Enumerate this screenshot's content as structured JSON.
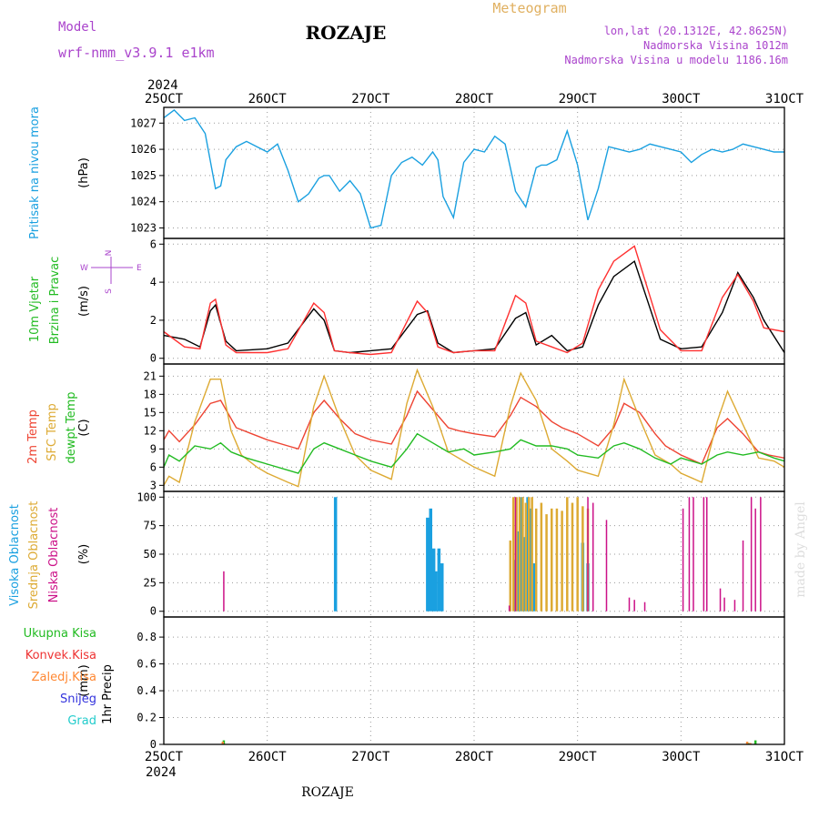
{
  "header": {
    "model_label": "Model",
    "model_name": "wrf-nmm_v3.9.1  e1km",
    "station": "ROZAJE",
    "meteogram_label": "Meteogram",
    "lonlat": "lon,lat (20.1312E, 42.8625N)",
    "altitude": "Nadmorska Visina 1012m",
    "model_altitude": "Nadmorska Visina u modelu 1186.16m",
    "watermark": "made by Angel",
    "footer_station": "ROZAJE"
  },
  "colors": {
    "pressure": "#1aa0e0",
    "wind_speed": "#000000",
    "gust": "#ff3030",
    "temp2m": "#ee4433",
    "sfc_temp": "#ddaa33",
    "dewpoint": "#22bb22",
    "high_cloud": "#1aa0e0",
    "mid_cloud": "#ddaa33",
    "low_cloud": "#cc1188",
    "total_precip": "#22bb22",
    "conv_precip": "#ee3333",
    "frz_precip": "#ff8833",
    "snow": "#3333dd",
    "hail": "#22cccc",
    "model_text": "#aa44cc",
    "title_gold": "#e0b060"
  },
  "chart_data": [
    {
      "type": "line",
      "id": "pressure",
      "ylabel_lines": [
        "Pritisak na nivou mora"
      ],
      "unit": "(hPa)",
      "x_ticks": [
        "25OCT",
        "26OCT",
        "27OCT",
        "28OCT",
        "29OCT",
        "30OCT",
        "31OCT"
      ],
      "x_year_label": "2024",
      "x_range": [
        0,
        6
      ],
      "ylim": [
        1022.6,
        1027.6
      ],
      "y_ticks": [
        1023,
        1024,
        1025,
        1026,
        1027
      ],
      "series": [
        {
          "key": "pressure",
          "x": [
            0,
            0.1,
            0.2,
            0.3,
            0.4,
            0.5,
            0.55,
            0.6,
            0.7,
            0.8,
            0.9,
            1.0,
            1.1,
            1.2,
            1.3,
            1.4,
            1.5,
            1.55,
            1.6,
            1.7,
            1.8,
            1.9,
            2.0,
            2.1,
            2.2,
            2.3,
            2.4,
            2.5,
            2.6,
            2.65,
            2.7,
            2.8,
            2.9,
            3.0,
            3.1,
            3.2,
            3.3,
            3.4,
            3.5,
            3.6,
            3.65,
            3.7,
            3.8,
            3.9,
            4.0,
            4.1,
            4.2,
            4.3,
            4.4,
            4.5,
            4.6,
            4.7,
            4.8,
            4.9,
            5.0,
            5.1,
            5.2,
            5.3,
            5.4,
            5.5,
            5.6,
            5.7,
            5.8,
            5.9,
            6.0
          ],
          "y": [
            1027.2,
            1027.5,
            1027.1,
            1027.2,
            1026.6,
            1024.5,
            1024.6,
            1025.6,
            1026.1,
            1026.3,
            1026.1,
            1025.9,
            1026.2,
            1025.2,
            1024.0,
            1024.3,
            1024.9,
            1025.0,
            1025.0,
            1024.4,
            1024.8,
            1024.3,
            1023.0,
            1023.1,
            1025.0,
            1025.5,
            1025.7,
            1025.4,
            1025.9,
            1025.6,
            1024.2,
            1023.4,
            1025.5,
            1026.0,
            1025.9,
            1026.5,
            1026.2,
            1024.4,
            1023.8,
            1025.3,
            1025.4,
            1025.4,
            1025.6,
            1026.7,
            1025.4,
            1023.3,
            1024.5,
            1026.1,
            1026.0,
            1025.9,
            1026.0,
            1026.2,
            1026.1,
            1026.0,
            1025.9,
            1025.5,
            1025.8,
            1026.0,
            1025.9,
            1026.0,
            1026.2,
            1026.1,
            1026.0,
            1025.9,
            1025.9
          ]
        }
      ]
    },
    {
      "type": "line",
      "id": "wind",
      "ylabel_lines": [
        "10m Vjetar",
        "Brzina i Pravac"
      ],
      "unit": "(m/s)",
      "compass": {
        "n": "N",
        "s": "S",
        "e": "E",
        "w": "W"
      },
      "x_range": [
        0,
        6
      ],
      "ylim": [
        -0.3,
        6.3
      ],
      "y_ticks": [
        0,
        2,
        4,
        6
      ],
      "series": [
        {
          "key": "wind_speed",
          "x": [
            0,
            0.2,
            0.35,
            0.45,
            0.5,
            0.6,
            0.7,
            1.0,
            1.2,
            1.45,
            1.55,
            1.65,
            1.8,
            2.0,
            2.2,
            2.45,
            2.55,
            2.65,
            2.8,
            3.0,
            3.2,
            3.4,
            3.5,
            3.6,
            3.75,
            3.9,
            4.05,
            4.2,
            4.35,
            4.55,
            4.8,
            5.0,
            5.2,
            5.4,
            5.55,
            5.7,
            5.8,
            6.0
          ],
          "y": [
            1.2,
            1.0,
            0.6,
            2.5,
            2.8,
            0.9,
            0.4,
            0.5,
            0.8,
            2.6,
            2.0,
            0.4,
            0.3,
            0.4,
            0.5,
            2.3,
            2.5,
            0.8,
            0.3,
            0.4,
            0.5,
            2.1,
            2.4,
            0.7,
            1.2,
            0.4,
            0.6,
            2.8,
            4.3,
            5.1,
            1.0,
            0.5,
            0.6,
            2.4,
            4.5,
            3.2,
            2.0,
            0.3
          ]
        },
        {
          "key": "gust",
          "x": [
            0,
            0.2,
            0.35,
            0.45,
            0.5,
            0.6,
            0.7,
            1.0,
            1.2,
            1.45,
            1.55,
            1.65,
            1.8,
            2.0,
            2.2,
            2.45,
            2.55,
            2.65,
            2.8,
            3.0,
            3.2,
            3.4,
            3.5,
            3.6,
            3.75,
            3.9,
            4.05,
            4.2,
            4.35,
            4.55,
            4.8,
            5.0,
            5.2,
            5.4,
            5.55,
            5.7,
            5.8,
            6.0
          ],
          "y": [
            1.4,
            0.6,
            0.5,
            2.9,
            3.1,
            0.7,
            0.3,
            0.3,
            0.5,
            2.9,
            2.4,
            0.4,
            0.3,
            0.2,
            0.3,
            3.0,
            2.4,
            0.6,
            0.3,
            0.4,
            0.4,
            3.3,
            2.9,
            0.9,
            0.6,
            0.3,
            0.8,
            3.6,
            5.1,
            5.9,
            1.5,
            0.4,
            0.4,
            3.2,
            4.4,
            3.0,
            1.6,
            1.4
          ]
        }
      ]
    },
    {
      "type": "line",
      "id": "temperature",
      "ylabel_lines": [
        "2m Temp",
        "SFC Temp",
        "dewpt Temp"
      ],
      "unit": "(C)",
      "x_range": [
        0,
        6
      ],
      "ylim": [
        2,
        23
      ],
      "y_ticks": [
        3,
        6,
        9,
        12,
        15,
        18,
        21
      ],
      "series": [
        {
          "key": "temp2m",
          "x": [
            0,
            0.05,
            0.15,
            0.3,
            0.45,
            0.55,
            0.65,
            0.7,
            0.85,
            1.0,
            1.2,
            1.3,
            1.45,
            1.55,
            1.7,
            1.85,
            2.0,
            2.2,
            2.35,
            2.45,
            2.6,
            2.75,
            2.85,
            3.0,
            3.2,
            3.35,
            3.45,
            3.6,
            3.75,
            3.85,
            4.0,
            4.2,
            4.35,
            4.45,
            4.6,
            4.75,
            4.85,
            5.0,
            5.2,
            5.35,
            5.45,
            5.6,
            5.75,
            5.85,
            6.0
          ],
          "y": [
            10.5,
            12.0,
            10.2,
            13.0,
            16.5,
            17.0,
            14.0,
            12.5,
            11.5,
            10.5,
            9.5,
            9.0,
            15.0,
            17.0,
            14.0,
            11.5,
            10.5,
            9.8,
            14.5,
            18.5,
            15.5,
            12.5,
            12.0,
            11.5,
            11.0,
            14.5,
            17.5,
            16.0,
            13.5,
            12.5,
            11.5,
            9.5,
            12.5,
            16.5,
            15.0,
            11.5,
            9.5,
            8.0,
            6.5,
            12.5,
            14.0,
            11.5,
            8.5,
            8.0,
            7.5
          ]
        },
        {
          "key": "sfc_temp",
          "x": [
            0,
            0.05,
            0.15,
            0.3,
            0.45,
            0.55,
            0.65,
            0.75,
            0.9,
            1.0,
            1.2,
            1.3,
            1.45,
            1.55,
            1.7,
            1.85,
            2.0,
            2.2,
            2.35,
            2.45,
            2.6,
            2.75,
            2.9,
            3.0,
            3.2,
            3.35,
            3.45,
            3.6,
            3.75,
            3.9,
            4.0,
            4.2,
            4.35,
            4.45,
            4.6,
            4.75,
            4.9,
            5.0,
            5.2,
            5.35,
            5.45,
            5.6,
            5.75,
            5.9,
            6.0
          ],
          "y": [
            3.0,
            4.5,
            3.5,
            13.5,
            20.5,
            20.5,
            12.0,
            8.0,
            6.0,
            5.0,
            3.5,
            2.8,
            16.0,
            21.0,
            14.0,
            8.0,
            5.5,
            4.0,
            16.5,
            22.0,
            16.0,
            8.5,
            7.0,
            6.0,
            4.5,
            16.0,
            21.5,
            17.0,
            9.0,
            7.0,
            5.5,
            4.5,
            13.0,
            20.5,
            14.0,
            8.0,
            6.5,
            5.0,
            3.5,
            13.5,
            18.5,
            13.0,
            7.5,
            7.0,
            6.0
          ]
        },
        {
          "key": "dewpoint",
          "x": [
            0,
            0.05,
            0.15,
            0.3,
            0.45,
            0.55,
            0.65,
            0.8,
            1.0,
            1.2,
            1.3,
            1.45,
            1.55,
            1.7,
            1.85,
            2.0,
            2.2,
            2.35,
            2.45,
            2.6,
            2.75,
            2.9,
            3.0,
            3.2,
            3.35,
            3.45,
            3.6,
            3.75,
            3.9,
            4.0,
            4.2,
            4.35,
            4.45,
            4.6,
            4.75,
            4.9,
            5.0,
            5.2,
            5.35,
            5.45,
            5.6,
            5.75,
            5.9,
            6.0
          ],
          "y": [
            6.0,
            8.0,
            7.0,
            9.5,
            9.0,
            10.0,
            8.5,
            7.5,
            6.5,
            5.5,
            5.0,
            9.0,
            10.0,
            9.0,
            8.0,
            7.0,
            6.0,
            9.0,
            11.5,
            10.0,
            8.5,
            9.0,
            8.0,
            8.5,
            9.0,
            10.5,
            9.5,
            9.5,
            9.0,
            8.0,
            7.5,
            9.5,
            10.0,
            9.0,
            7.5,
            6.5,
            7.5,
            6.5,
            8.0,
            8.5,
            8.0,
            8.5,
            7.5,
            7.0
          ]
        }
      ]
    },
    {
      "type": "bar",
      "id": "clouds",
      "ylabel_lines": [
        "Visoka Oblacnost",
        "Srednja Oblacnost",
        "Niska Oblacnost"
      ],
      "unit": "(%)",
      "x_range": [
        0,
        6
      ],
      "ylim": [
        -5,
        105
      ],
      "y_ticks": [
        0,
        25,
        50,
        75,
        100
      ],
      "series": [
        {
          "key": "high_cloud",
          "x": [
            1.66,
            2.55,
            2.58,
            2.61,
            2.63,
            2.66,
            2.69,
            3.4,
            3.43,
            3.46,
            3.49,
            3.52,
            3.55,
            3.58,
            4.05,
            4.1
          ],
          "y": [
            100,
            82,
            90,
            55,
            35,
            55,
            42,
            45,
            70,
            100,
            65,
            100,
            90,
            42,
            60,
            42
          ]
        },
        {
          "key": "mid_cloud",
          "x": [
            3.35,
            3.38,
            3.41,
            3.44,
            3.47,
            3.5,
            3.53,
            3.56,
            3.6,
            3.65,
            3.7,
            3.75,
            3.8,
            3.85,
            3.9,
            3.95,
            4.0,
            4.05,
            4.1
          ],
          "y": [
            62,
            100,
            100,
            100,
            100,
            95,
            100,
            100,
            90,
            95,
            85,
            90,
            90,
            88,
            100,
            95,
            100,
            92,
            90
          ],
          "series_note": ""
        },
        {
          "key": "low_cloud",
          "x": [
            0.58,
            3.34,
            3.4,
            4.1,
            4.15,
            4.28,
            4.5,
            4.55,
            4.65,
            5.02,
            5.08,
            5.12,
            5.22,
            5.25,
            5.38,
            5.42,
            5.52,
            5.6,
            5.68,
            5.72,
            5.77
          ],
          "y": [
            35,
            5,
            100,
            100,
            95,
            80,
            12,
            10,
            8,
            90,
            100,
            100,
            100,
            100,
            20,
            12,
            10,
            62,
            100,
            90,
            100
          ]
        }
      ]
    },
    {
      "type": "bar",
      "id": "precip",
      "ylabel_lines": [
        "1hr Precip"
      ],
      "unit": "(mm)",
      "legend": [
        "Ukupna Kisa",
        "Konvek.Kisa",
        "Zaledj.Kisa",
        "Snijeg",
        "Grad"
      ],
      "x_range": [
        0,
        6
      ],
      "ylim": [
        0,
        0.95
      ],
      "y_ticks": [
        0,
        0.2,
        0.4,
        0.6,
        0.8
      ],
      "y_tick_labels": [
        "0",
        "0.2",
        "0.4",
        "0.6",
        "0.8"
      ],
      "series": [
        {
          "key": "total_precip",
          "x": [
            0.58,
            5.66,
            5.72
          ],
          "y": [
            0.03,
            0.01,
            0.03
          ]
        },
        {
          "key": "frz_precip",
          "x": [
            0.57,
            5.64,
            5.67
          ],
          "y": [
            0.02,
            0.02,
            0.01
          ]
        }
      ]
    }
  ]
}
